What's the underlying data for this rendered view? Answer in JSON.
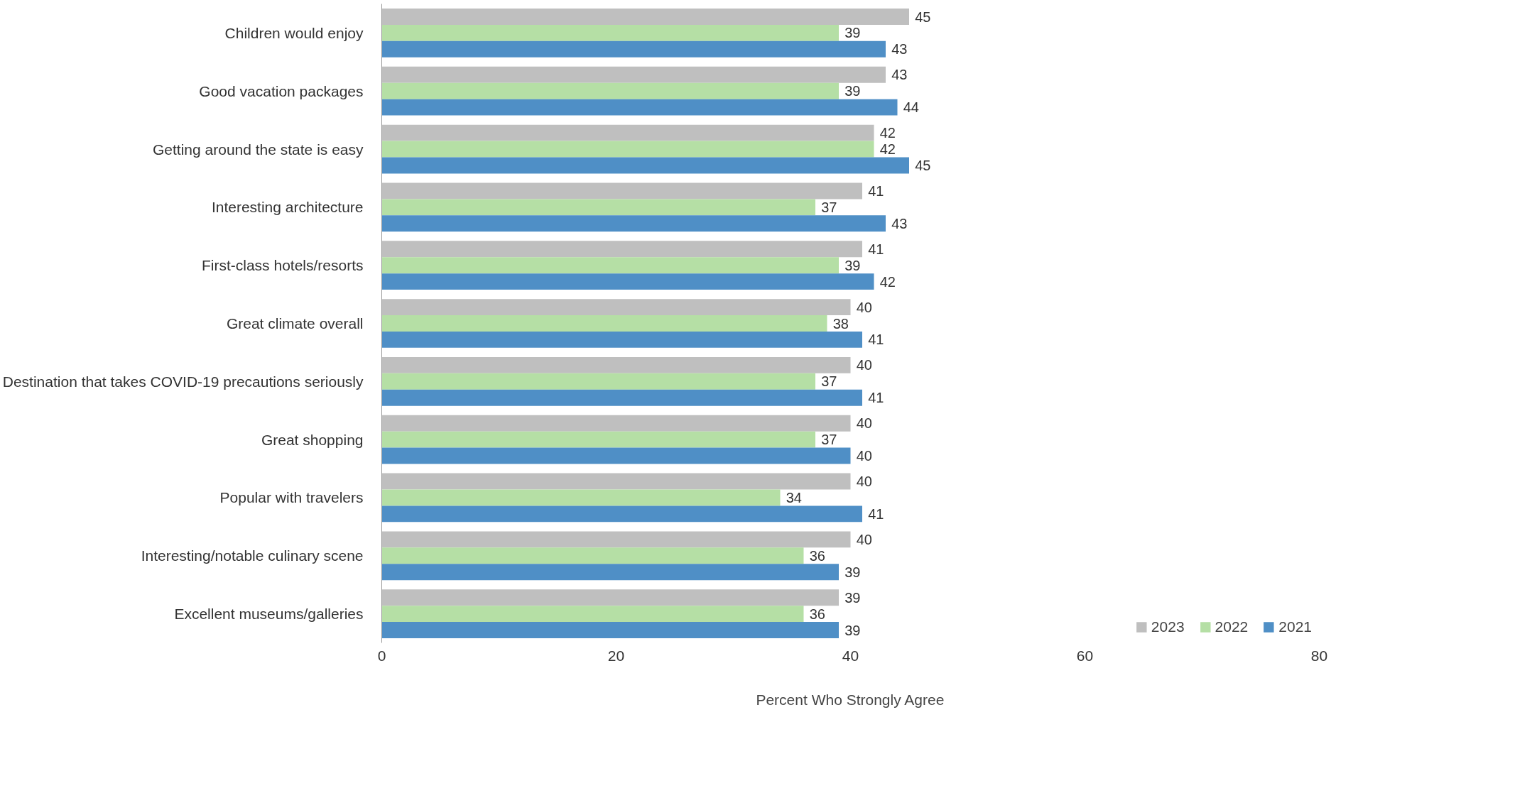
{
  "chart_data": {
    "type": "bar",
    "orientation": "horizontal",
    "xlabel": "Percent Who Strongly Agree",
    "categories": [
      "Children would enjoy",
      "Good vacation packages",
      "Getting around the state is easy",
      "Interesting architecture",
      "First-class hotels/resorts",
      "Great climate overall",
      "Destination that takes COVID-19 precautions seriously",
      "Great shopping",
      "Popular with travelers",
      "Interesting/notable culinary scene",
      "Excellent museums/galleries"
    ],
    "series": [
      {
        "name": "2023",
        "color": "#bfbfbf",
        "values": [
          45,
          43,
          42,
          41,
          41,
          40,
          40,
          40,
          40,
          40,
          39
        ]
      },
      {
        "name": "2022",
        "color": "#b5dfa5",
        "values": [
          39,
          39,
          42,
          37,
          39,
          38,
          37,
          37,
          34,
          36,
          36
        ]
      },
      {
        "name": "2021",
        "color": "#4f8fc6",
        "values": [
          43,
          44,
          45,
          43,
          42,
          41,
          41,
          40,
          41,
          39,
          39
        ]
      }
    ],
    "xlim": [
      0,
      80
    ],
    "xticks": [
      0,
      20,
      40,
      60,
      80
    ],
    "grid": false,
    "legend": "bottom right",
    "data_labels": true
  }
}
